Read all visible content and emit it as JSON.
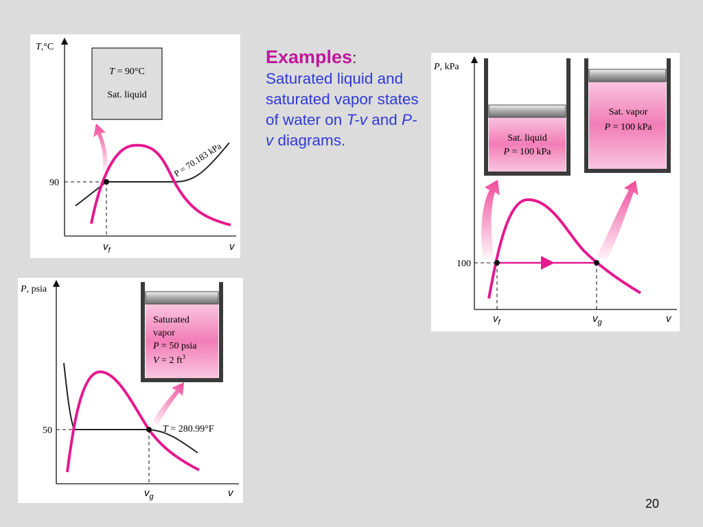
{
  "heading": {
    "title": "Examples",
    "colon": ":",
    "text_1": "Saturated liquid and saturated vapor states of water on ",
    "tv": "T-v",
    "and": " and ",
    "pv": "P-v",
    "text_2": " diagrams."
  },
  "tv_diagram": {
    "y_symbol": "T",
    "y_unit": ",°C",
    "x_label": "v",
    "tick_90": "90",
    "x_tick_main": "v",
    "x_tick_sub": "f",
    "isobar_label": "P = 70.183 kPa",
    "state_line1_sym": "T",
    "state_line1_val": " = 90°C",
    "state_line2": "Sat. liquid"
  },
  "pv_kpa_diagram": {
    "y_symbol": "P",
    "y_unit": ", kPa",
    "x_label": "v",
    "tick_100": "100",
    "vf_main": "v",
    "vf_sub": "f",
    "vg_main": "v",
    "vg_sub": "g",
    "liquid_line1": "Sat. liquid",
    "liquid_line2_sym": "P",
    "liquid_line2_val": " = 100 kPa",
    "vapor_line1": "Sat. vapor",
    "vapor_line2_sym": "P",
    "vapor_line2_val": " = 100 kPa"
  },
  "pv_psia_diagram": {
    "y_symbol": "P",
    "y_unit": ", psia",
    "x_label": "v",
    "tick_50": "50",
    "vg_main": "v",
    "vg_sub": "g",
    "isotherm_sym": "T",
    "isotherm_val": " = 280.99°F",
    "state_line1": "Saturated",
    "state_line2": "vapor",
    "state_line3_sym": "P",
    "state_line3_val": " = 50 psia",
    "state_line4_sym": "V",
    "state_line4_val": " = 2 ft",
    "state_line4_sup": "3"
  },
  "colors": {
    "dome": "#e6188f",
    "arrow": "#f04a9a",
    "text_blue": "#2f3ad6",
    "heading_magenta": "#c0169a"
  },
  "page_number": "20"
}
